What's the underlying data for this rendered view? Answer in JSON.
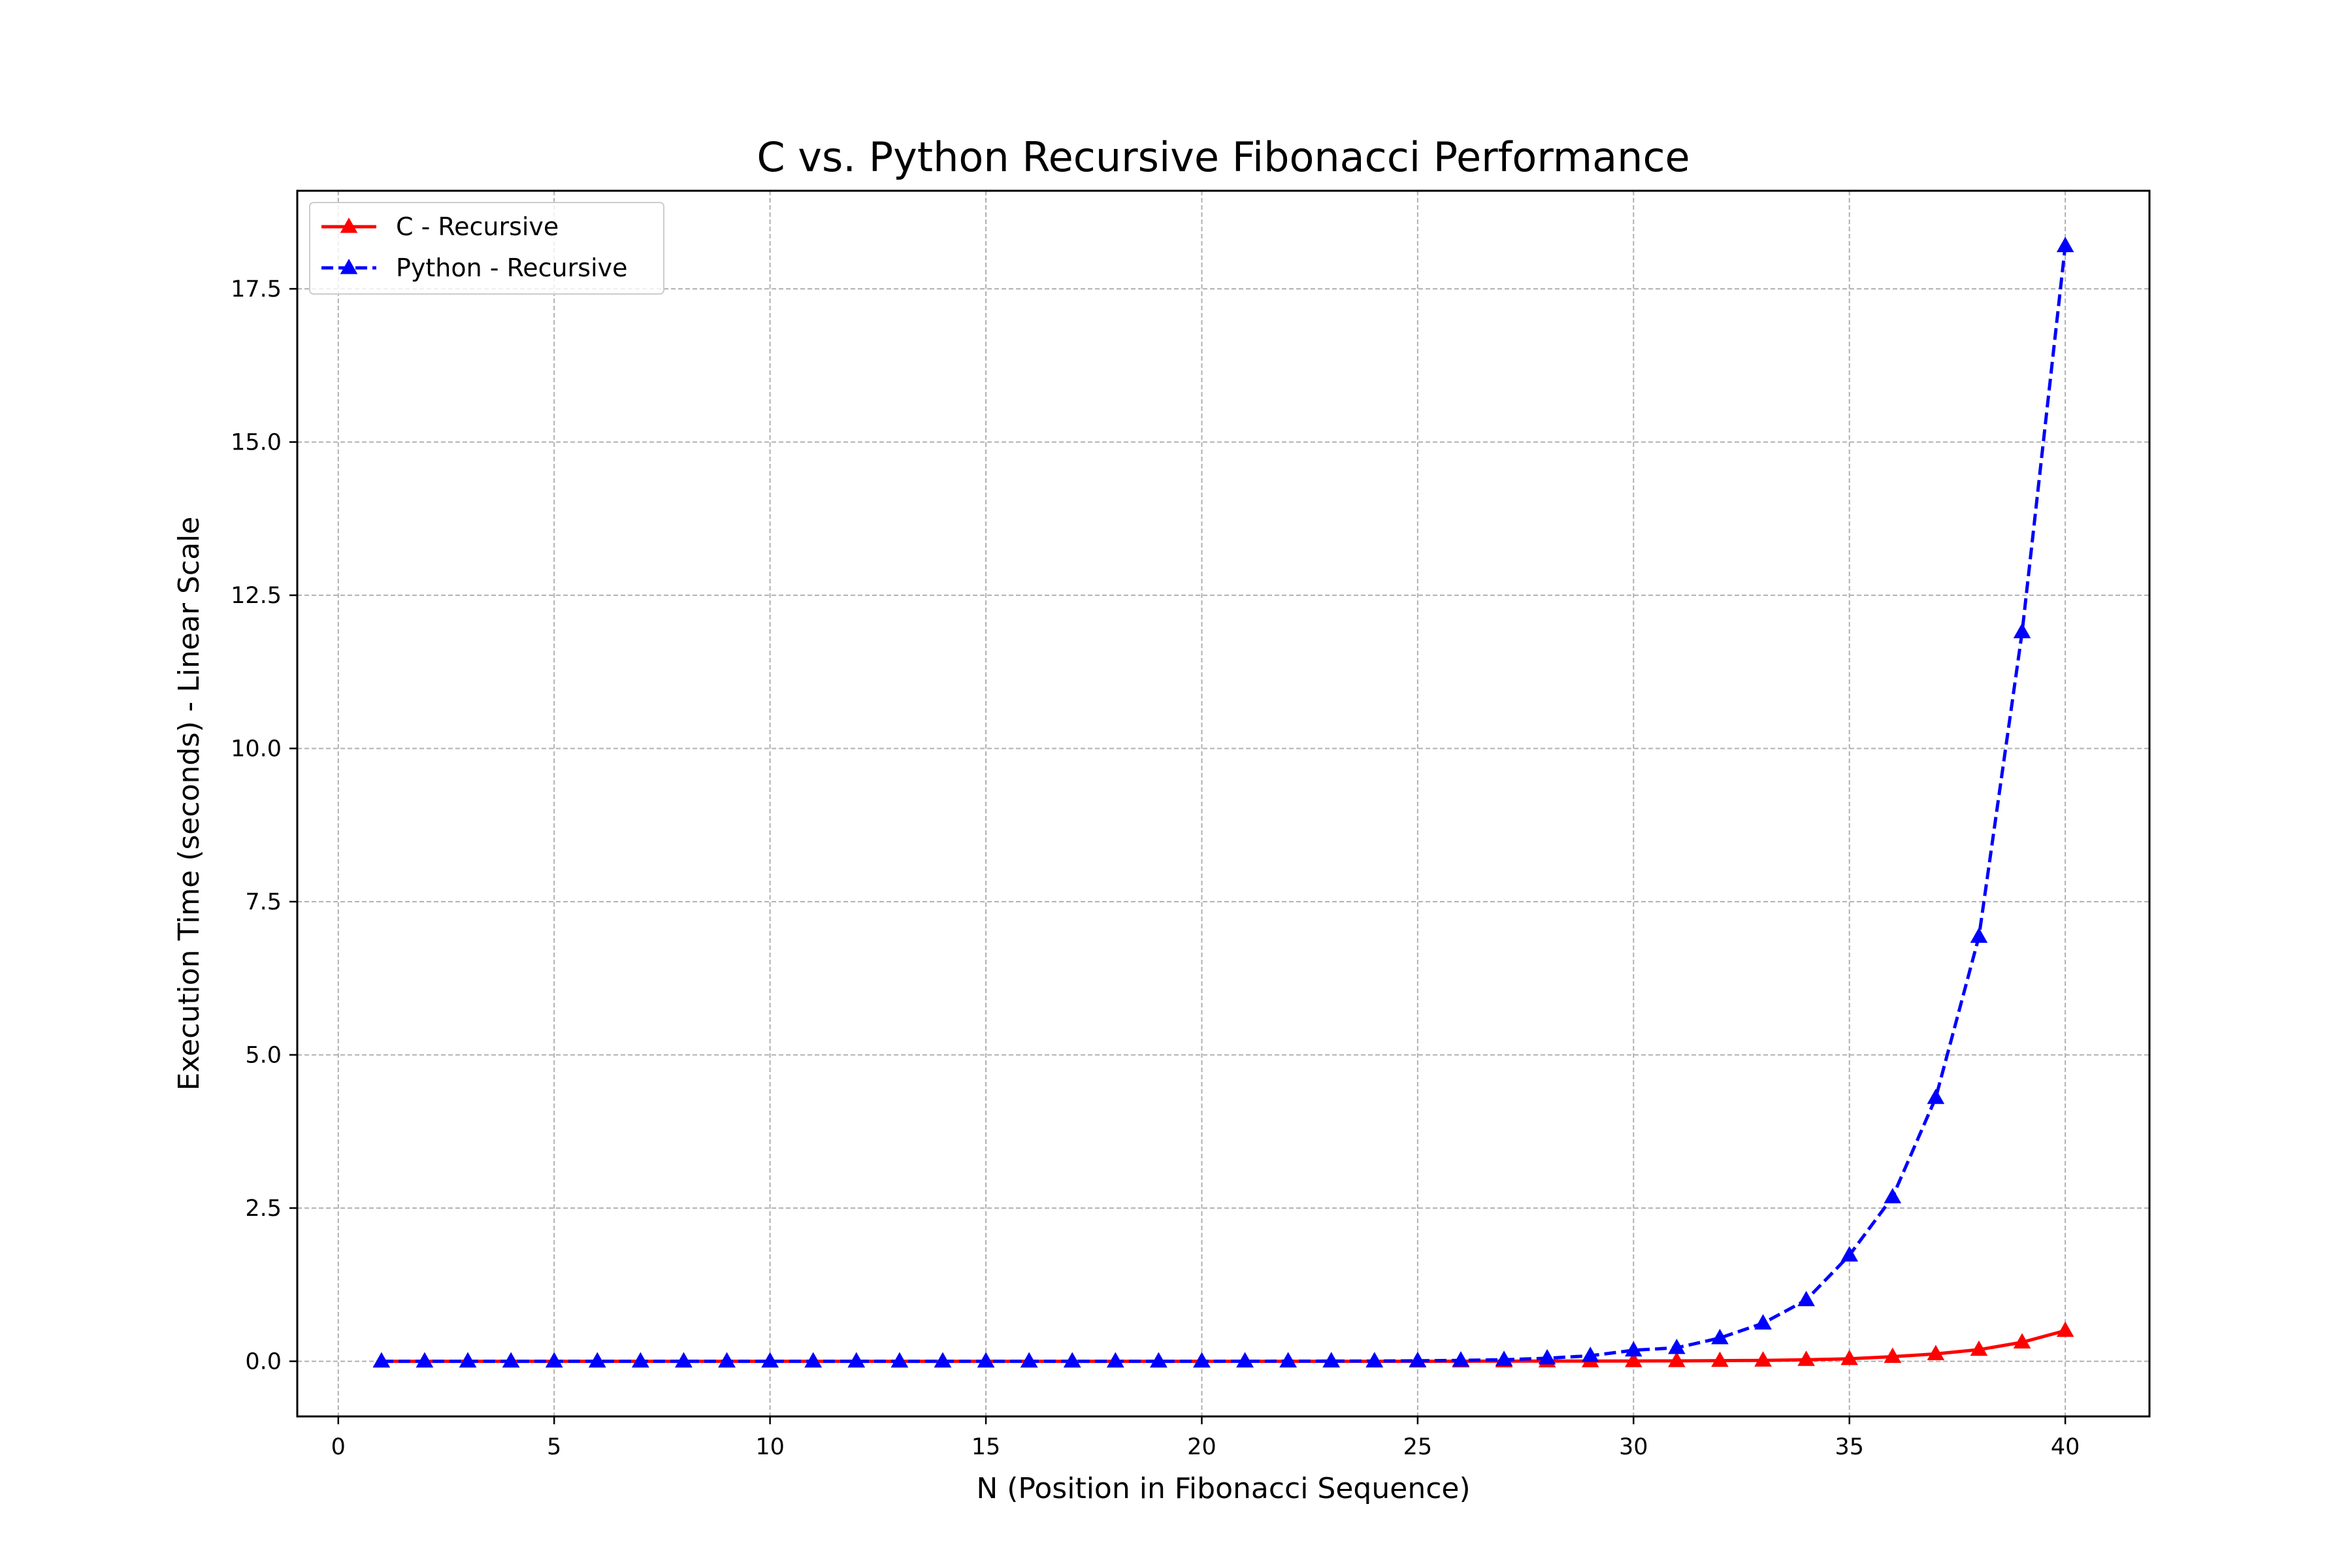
{
  "chart_data": {
    "type": "line",
    "title": "C vs. Python Recursive Fibonacci Performance",
    "xlabel": "N (Position in Fibonacci Sequence)",
    "ylabel": "Execution Time (seconds) - Linear Scale",
    "xlim": [
      -0.95,
      41.95
    ],
    "ylim": [
      -0.9,
      19.1
    ],
    "xticks": [
      0,
      5,
      10,
      15,
      20,
      25,
      30,
      35,
      40
    ],
    "xtick_labels": [
      "0",
      "5",
      "10",
      "15",
      "20",
      "25",
      "30",
      "35",
      "40"
    ],
    "yticks": [
      0.0,
      2.5,
      5.0,
      7.5,
      10.0,
      12.5,
      15.0,
      17.5
    ],
    "ytick_labels": [
      "0.0",
      "2.5",
      "5.0",
      "7.5",
      "10.0",
      "12.5",
      "15.0",
      "17.5"
    ],
    "grid": true,
    "legend_position": "top-left",
    "x": [
      1,
      2,
      3,
      4,
      5,
      6,
      7,
      8,
      9,
      10,
      11,
      12,
      13,
      14,
      15,
      16,
      17,
      18,
      19,
      20,
      21,
      22,
      23,
      24,
      25,
      26,
      27,
      28,
      29,
      30,
      31,
      32,
      33,
      34,
      35,
      36,
      37,
      38,
      39,
      40
    ],
    "series": [
      {
        "name": "C - Recursive",
        "color": "#ff0000",
        "line_style": "solid",
        "marker": "triangle-up",
        "values": [
          0,
          0,
          0,
          0,
          0,
          0,
          0,
          0,
          0,
          0,
          0,
          0,
          0,
          0,
          0,
          0,
          0,
          0,
          0,
          0,
          0,
          0,
          0,
          0,
          0,
          0.001,
          0.002,
          0.003,
          0.004,
          0.005,
          0.006,
          0.01,
          0.015,
          0.025,
          0.04,
          0.075,
          0.12,
          0.19,
          0.31,
          0.5
        ]
      },
      {
        "name": "Python - Recursive",
        "color": "#0000ff",
        "line_style": "dashed",
        "marker": "triangle-up",
        "values": [
          0,
          0,
          0,
          0,
          0,
          0,
          0,
          0,
          0,
          0,
          0,
          0,
          0,
          0,
          0,
          0,
          0,
          0,
          0,
          0,
          0.001,
          0.002,
          0.003,
          0.004,
          0.008,
          0.015,
          0.025,
          0.05,
          0.09,
          0.18,
          0.22,
          0.38,
          0.62,
          1.0,
          1.73,
          2.68,
          4.3,
          6.93,
          11.9,
          18.2
        ]
      }
    ]
  }
}
